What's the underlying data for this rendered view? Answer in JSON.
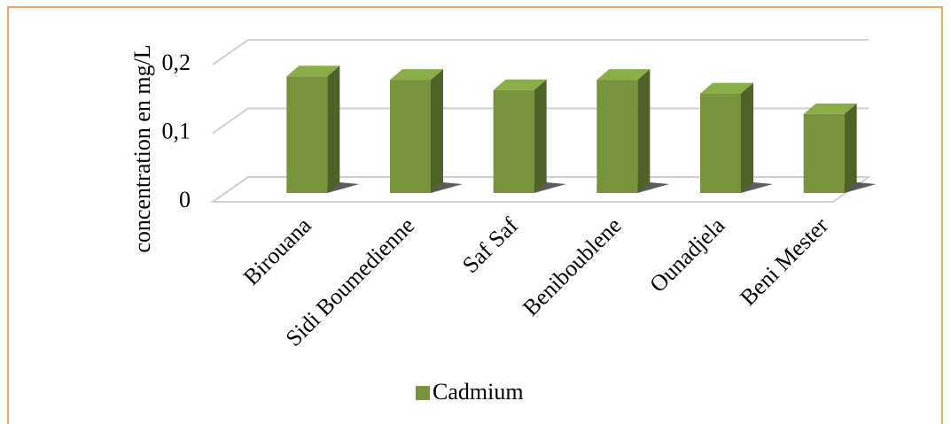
{
  "chart_data": {
    "type": "bar3d",
    "y_label": "concentration en mg/L",
    "categories": [
      "Birouana",
      "Sidi Boumedienne",
      "Saf Saf",
      "Beniboublene",
      "Ounadjela",
      "Beni Mester"
    ],
    "series": [
      {
        "name": "Cadmium",
        "color": "#77933c",
        "values": [
          0.17,
          0.165,
          0.15,
          0.165,
          0.145,
          0.115
        ]
      }
    ],
    "ylim": [
      0,
      0.2
    ],
    "yticks": [
      0,
      {
        "value": 0.1,
        "label": "0,1"
      },
      {
        "value": 0.2,
        "label": "0,2"
      }
    ],
    "grid": true
  }
}
